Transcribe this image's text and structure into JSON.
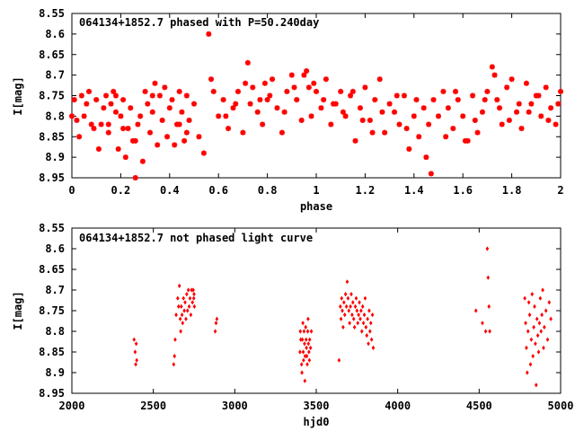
{
  "chart_data": [
    {
      "type": "scatter",
      "title": "064134+1852.7 phased with P=50.240day",
      "xlabel": "phase",
      "ylabel": "I[mag]",
      "xlim": [
        0,
        2
      ],
      "ylim": [
        8.95,
        8.55
      ],
      "x_ticks": [
        "0",
        "0.2",
        "0.4",
        "0.6",
        "0.8",
        "1",
        "1.2",
        "1.4",
        "1.6",
        "1.8",
        "2"
      ],
      "y_ticks": [
        "8.55",
        "8.6",
        "8.65",
        "8.7",
        "8.75",
        "8.8",
        "8.85",
        "8.9",
        "8.95"
      ],
      "grid": false,
      "marker_color": "#ff0000",
      "marker": "star",
      "series": [
        {
          "x": [
            0.0,
            0.01,
            0.02,
            0.03,
            0.04,
            0.05,
            0.06,
            0.08,
            0.1,
            0.11,
            0.12,
            0.13,
            0.14,
            0.15,
            0.16,
            0.17,
            0.18,
            0.19,
            0.2,
            0.21,
            0.22,
            0.23,
            0.24,
            0.25,
            0.26,
            0.27,
            0.28,
            0.29,
            0.3,
            0.31,
            0.32,
            0.33,
            0.34,
            0.35,
            0.36,
            0.37,
            0.38,
            0.39,
            0.4,
            0.41,
            0.42,
            0.43,
            0.44,
            0.45,
            0.46,
            0.47,
            0.48,
            0.5,
            0.52,
            0.54,
            0.56,
            0.57,
            0.58,
            0.6,
            0.62,
            0.64,
            0.66,
            0.68,
            0.7,
            0.72,
            0.73,
            0.74,
            0.76,
            0.78,
            0.79,
            0.8,
            0.82,
            0.84,
            0.86,
            0.88,
            0.9,
            0.92,
            0.94,
            0.95,
            0.96,
            0.97,
            0.98,
            1.0,
            1.02,
            1.04,
            1.06,
            1.08,
            1.1,
            1.12,
            1.14,
            1.16,
            1.18,
            1.2,
            1.22,
            1.24,
            1.26,
            1.28,
            1.3,
            1.32,
            1.34,
            1.36,
            1.38,
            1.4,
            1.42,
            1.44,
            1.46,
            1.47,
            1.48,
            1.5,
            1.52,
            1.54,
            1.56,
            1.58,
            1.6,
            1.62,
            1.64,
            1.66,
            1.68,
            1.7,
            1.72,
            1.73,
            1.74,
            1.76,
            1.78,
            1.8,
            1.82,
            1.84,
            1.86,
            1.88,
            1.9,
            1.92,
            1.94,
            1.96,
            1.98,
            2.0,
            0.07,
            0.09,
            0.15,
            0.18,
            0.21,
            0.26,
            0.33,
            0.44,
            0.47,
            0.63,
            0.67,
            0.71,
            0.77,
            0.81,
            0.87,
            0.91,
            0.99,
            1.03,
            1.07,
            1.11,
            1.15,
            1.19,
            1.23,
            1.27,
            1.33,
            1.37,
            1.41,
            1.45,
            1.53,
            1.57,
            1.61,
            1.65,
            1.69,
            1.75,
            1.79,
            1.83,
            1.87,
            1.91,
            1.95,
            1.99
          ],
          "y": [
            8.8,
            8.76,
            8.81,
            8.85,
            8.75,
            8.8,
            8.77,
            8.82,
            8.76,
            8.88,
            8.82,
            8.78,
            8.75,
            8.84,
            8.77,
            8.74,
            8.75,
            8.88,
            8.8,
            8.76,
            8.9,
            8.83,
            8.78,
            8.86,
            8.95,
            8.82,
            8.8,
            8.91,
            8.74,
            8.77,
            8.84,
            8.79,
            8.72,
            8.87,
            8.75,
            8.81,
            8.73,
            8.85,
            8.78,
            8.76,
            8.87,
            8.82,
            8.74,
            8.79,
            8.86,
            8.75,
            8.81,
            8.77,
            8.85,
            8.89,
            8.6,
            8.71,
            8.74,
            8.8,
            8.76,
            8.83,
            8.78,
            8.74,
            8.84,
            8.67,
            8.77,
            8.73,
            8.79,
            8.82,
            8.72,
            8.76,
            8.71,
            8.78,
            8.84,
            8.74,
            8.7,
            8.76,
            8.81,
            8.7,
            8.69,
            8.73,
            8.8,
            8.74,
            8.78,
            8.71,
            8.82,
            8.77,
            8.74,
            8.8,
            8.75,
            8.86,
            8.78,
            8.73,
            8.81,
            8.76,
            8.71,
            8.84,
            8.77,
            8.79,
            8.82,
            8.75,
            8.88,
            8.8,
            8.85,
            8.78,
            8.82,
            8.94,
            8.76,
            8.8,
            8.74,
            8.78,
            8.83,
            8.76,
            8.8,
            8.86,
            8.75,
            8.84,
            8.79,
            8.74,
            8.68,
            8.7,
            8.76,
            8.82,
            8.73,
            8.71,
            8.79,
            8.83,
            8.72,
            8.77,
            8.75,
            8.8,
            8.73,
            8.78,
            8.82,
            8.74,
            8.74,
            8.83,
            8.82,
            8.79,
            8.83,
            8.86,
            8.75,
            8.82,
            8.84,
            8.8,
            8.77,
            8.72,
            8.76,
            8.75,
            8.79,
            8.73,
            8.72,
            8.76,
            8.77,
            8.79,
            8.74,
            8.81,
            8.84,
            8.79,
            8.75,
            8.83,
            8.76,
            8.9,
            8.85,
            8.74,
            8.86,
            8.81,
            8.76,
            8.78,
            8.81,
            8.77,
            8.79,
            8.75,
            8.81,
            8.77
          ]
        }
      ]
    },
    {
      "type": "scatter",
      "title": "064134+1852.7 not phased light curve",
      "xlabel": "hjd0",
      "ylabel": "I[mag]",
      "xlim": [
        2000,
        5000
      ],
      "ylim": [
        8.95,
        8.55
      ],
      "x_ticks": [
        "2000",
        "2500",
        "3000",
        "3500",
        "4000",
        "4500",
        "5000"
      ],
      "y_ticks": [
        "8.55",
        "8.6",
        "8.65",
        "8.7",
        "8.75",
        "8.8",
        "8.85",
        "8.9",
        "8.95"
      ],
      "grid": false,
      "marker_color": "#ff0000",
      "marker": "diamond",
      "series": [
        {
          "x": [
            2382,
            2388,
            2392,
            2395,
            2398,
            2625,
            2630,
            2634,
            2640,
            2650,
            2655,
            2660,
            2665,
            2668,
            2672,
            2676,
            2680,
            2685,
            2690,
            2695,
            2700,
            2705,
            2710,
            2715,
            2720,
            2725,
            2730,
            2735,
            2740,
            2745,
            2748,
            2750,
            2752,
            2880,
            2885,
            2890,
            3400,
            3402,
            3405,
            3410,
            3412,
            3415,
            3418,
            3420,
            3422,
            3425,
            3428,
            3430,
            3432,
            3435,
            3438,
            3440,
            3442,
            3445,
            3448,
            3450,
            3452,
            3455,
            3458,
            3460,
            3465,
            3470,
            3640,
            3648,
            3652,
            3656,
            3660,
            3665,
            3670,
            3675,
            3680,
            3685,
            3690,
            3695,
            3700,
            3705,
            3710,
            3715,
            3720,
            3725,
            3730,
            3735,
            3740,
            3745,
            3750,
            3755,
            3760,
            3765,
            3770,
            3775,
            3780,
            3785,
            3790,
            3795,
            3800,
            3805,
            3810,
            3815,
            3820,
            3825,
            3830,
            3835,
            3840,
            3845,
            3850,
            4480,
            4520,
            4540,
            4550,
            4555,
            4560,
            4565,
            4780,
            4785,
            4790,
            4795,
            4800,
            4805,
            4810,
            4815,
            4820,
            4825,
            4830,
            4835,
            4840,
            4845,
            4850,
            4855,
            4860,
            4865,
            4870,
            4875,
            4880,
            4885,
            4890,
            4895,
            4900,
            4910,
            4920,
            4930,
            4940
          ],
          "y": [
            8.82,
            8.85,
            8.88,
            8.83,
            8.87,
            8.88,
            8.86,
            8.82,
            8.76,
            8.72,
            8.74,
            8.69,
            8.77,
            8.8,
            8.74,
            8.76,
            8.78,
            8.72,
            8.75,
            8.73,
            8.77,
            8.71,
            8.75,
            8.7,
            8.74,
            8.72,
            8.76,
            8.7,
            8.73,
            8.7,
            8.72,
            8.71,
            8.74,
            8.8,
            8.78,
            8.77,
            8.85,
            8.8,
            8.82,
            8.88,
            8.9,
            8.82,
            8.78,
            8.85,
            8.87,
            8.8,
            8.83,
            8.92,
            8.86,
            8.79,
            8.82,
            8.84,
            8.86,
            8.88,
            8.8,
            8.77,
            8.83,
            8.85,
            8.87,
            8.82,
            8.84,
            8.8,
            8.87,
            8.74,
            8.77,
            8.72,
            8.75,
            8.79,
            8.73,
            8.76,
            8.71,
            8.74,
            8.68,
            8.72,
            8.75,
            8.78,
            8.74,
            8.71,
            8.76,
            8.73,
            8.77,
            8.79,
            8.74,
            8.72,
            8.75,
            8.78,
            8.76,
            8.73,
            8.77,
            8.75,
            8.8,
            8.74,
            8.78,
            8.76,
            8.72,
            8.79,
            8.81,
            8.77,
            8.83,
            8.75,
            8.8,
            8.78,
            8.82,
            8.76,
            8.84,
            8.75,
            8.78,
            8.8,
            8.6,
            8.67,
            8.74,
            8.8,
            8.72,
            8.78,
            8.84,
            8.9,
            8.8,
            8.73,
            8.76,
            8.88,
            8.82,
            8.71,
            8.86,
            8.79,
            8.74,
            8.83,
            8.93,
            8.77,
            8.81,
            8.85,
            8.78,
            8.72,
            8.8,
            8.76,
            8.7,
            8.84,
            8.79,
            8.75,
            8.82,
            8.73,
            8.77
          ]
        }
      ]
    }
  ]
}
